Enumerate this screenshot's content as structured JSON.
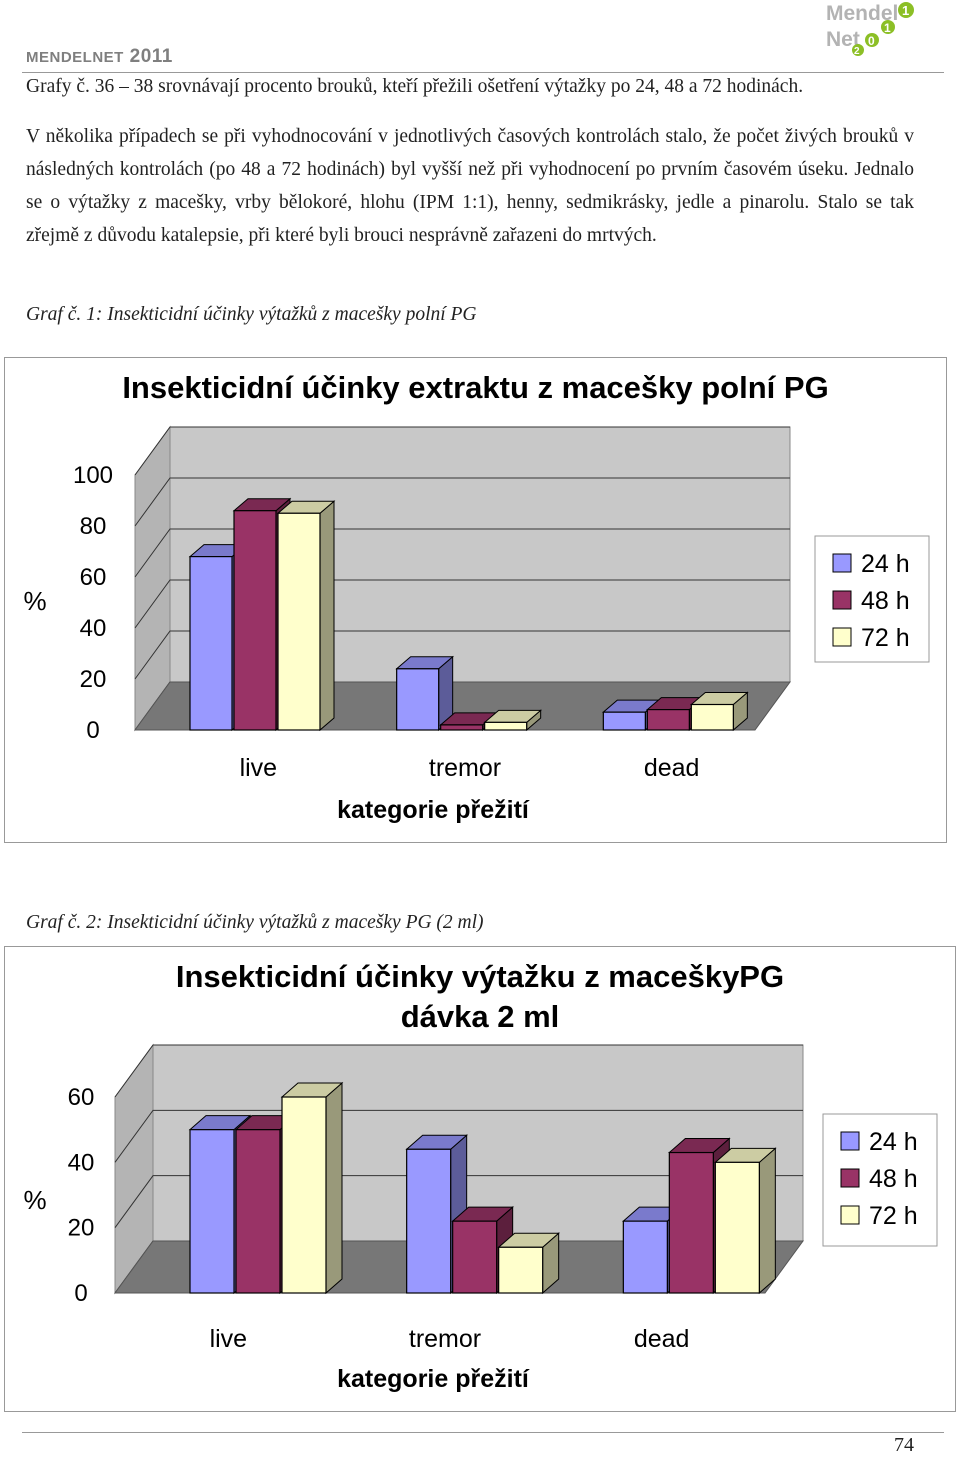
{
  "header": {
    "brand_prefix": "MENDEL",
    "brand_suffix": "NET",
    "year": "2011",
    "logo_text_1": "Mendel",
    "logo_text_2": "Net",
    "logo_digits": [
      "1",
      "1",
      "0",
      "2"
    ]
  },
  "paragraphs": [
    "Grafy č. 36 – 38 srovnávají procento brouků, kteří přežili ošetření výtažky po 24, 48 a 72 hodinách.",
    "V několika případech se při vyhodnocování v jednotlivých časových kontrolách stalo, že počet živých brouků v následných kontrolách (po 48 a 72 hodinách) byl vyšší než při vyhodnocení po prvním časovém úseku. Jednalo se o výtažky z macešky, vrby bělokoré, hlohu (IPM 1:1), henny, sedmikrásky, jedle a pinarolu. Stalo se tak zřejmě z důvodu katalepsie, při které byli brouci nesprávně zařazeni do mrtvých."
  ],
  "captions": {
    "graph1": "Graf č. 1: Insekticidní účinky výtažků z macešky polní PG",
    "graph2": "Graf č. 2: Insekticidní účinky výtažků z macešky PG (2 ml)"
  },
  "chart_data": [
    {
      "type": "bar",
      "title": "Insekticidní účinky extraktu z macešky polní PG",
      "xlabel": "kategorie přežití",
      "ylabel": "%",
      "categories": [
        "live",
        "tremor",
        "dead"
      ],
      "yticks": [
        "0",
        "20",
        "40",
        "60",
        "80",
        "100"
      ],
      "ylim": [
        0,
        100
      ],
      "series": [
        {
          "name": "24 h",
          "values": [
            68,
            24,
            7
          ]
        },
        {
          "name": "48 h",
          "values": [
            86,
            2,
            8
          ]
        },
        {
          "name": "72 h",
          "values": [
            85,
            3,
            10
          ]
        }
      ],
      "colors": [
        "#9999ff",
        "#993366",
        "#ffffcc"
      ],
      "legend": "right"
    },
    {
      "type": "bar",
      "title_line1": "Insekticidní účinky výtažku z maceškyPG",
      "title_line2": "dávka  2 ml",
      "xlabel": "kategorie přežití",
      "ylabel": "%",
      "categories": [
        "live",
        "tremor",
        "dead"
      ],
      "yticks": [
        "0",
        "20",
        "40",
        "60"
      ],
      "ylim": [
        0,
        60
      ],
      "series": [
        {
          "name": "24 h",
          "values": [
            50,
            44,
            22
          ]
        },
        {
          "name": "48 h",
          "values": [
            50,
            22,
            43
          ]
        },
        {
          "name": "72 h",
          "values": [
            60,
            14,
            40
          ]
        }
      ],
      "colors": [
        "#9999ff",
        "#993366",
        "#ffffcc"
      ],
      "legend": "right"
    }
  ],
  "footer": {
    "page_number": "74"
  }
}
